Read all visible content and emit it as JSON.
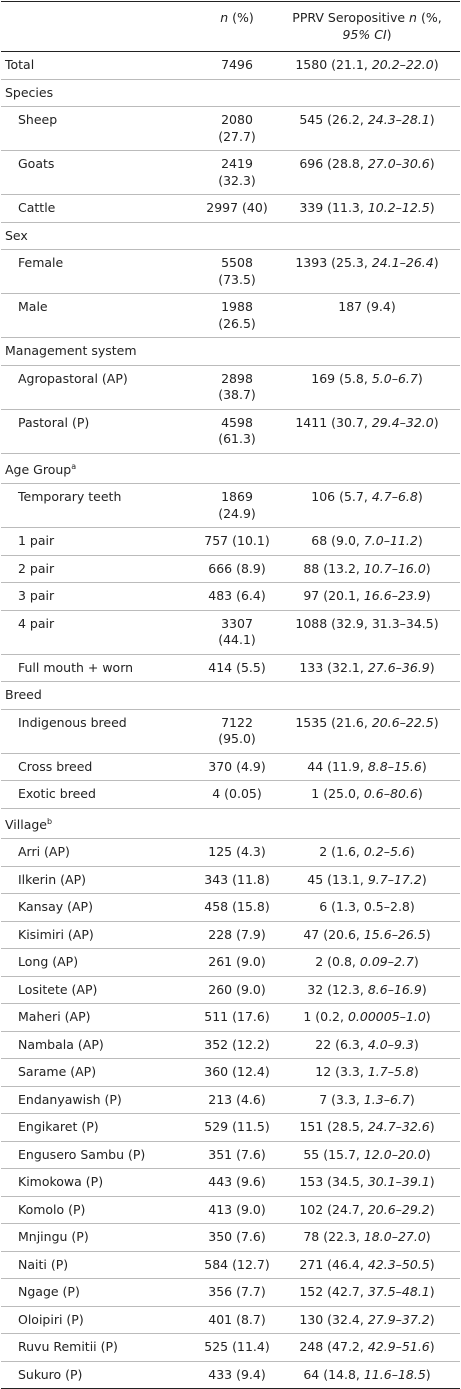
{
  "table": {
    "header": [
      [
        {
          "italic": "n"
        },
        " (%)"
      ],
      [
        "PPRV Seropositive ",
        {
          "italic": "n"
        },
        " (%, ",
        {
          "italic": "95% CI"
        },
        ")"
      ]
    ],
    "total": {
      "label": "Total",
      "n": "7496",
      "sero": [
        "1580 (21.1, ",
        {
          "italic": "20.2–22.0"
        },
        ")"
      ]
    },
    "sections": [
      {
        "label": "Species",
        "rows": [
          {
            "label": "Sheep",
            "n": "2080 (27.7)",
            "sero": [
              "545 (26.2, ",
              {
                "italic": "24.3–28.1"
              },
              ")"
            ]
          },
          {
            "label": "Goats",
            "n": "2419 (32.3)",
            "sero": [
              "696 (28.8, ",
              {
                "italic": "27.0–30.6"
              },
              ")"
            ]
          },
          {
            "label": "Cattle",
            "n": "2997 (40)",
            "sero": [
              "339 (11.3, ",
              {
                "italic": "10.2–12.5"
              },
              ")"
            ]
          }
        ]
      },
      {
        "label": "Sex",
        "rows": [
          {
            "label": "Female",
            "n": "5508 (73.5)",
            "sero": [
              "1393 (25.3, ",
              {
                "italic": "24.1–26.4"
              },
              ")"
            ]
          },
          {
            "label": "Male",
            "n": "1988 (26.5)",
            "sero": [
              "187 (9.4)"
            ]
          }
        ]
      },
      {
        "label": "Management system",
        "rows": [
          {
            "label": "Agropastoral (AP)",
            "n": "2898 (38.7)",
            "sero": [
              "169 (5.8, ",
              {
                "italic": "5.0–6.7"
              },
              ")"
            ]
          },
          {
            "label": "Pastoral (P)",
            "n": "4598 (61.3)",
            "sero": [
              "1411 (30.7, ",
              {
                "italic": "29.4–32.0"
              },
              ")"
            ]
          }
        ]
      },
      {
        "label": "Age Group",
        "note": "a",
        "rows": [
          {
            "label": "Temporary teeth",
            "n": "1869 (24.9)",
            "sero": [
              "106 (5.7, ",
              {
                "italic": "4.7–6.8"
              },
              ")"
            ]
          },
          {
            "label": "1 pair",
            "n": "757 (10.1)",
            "sero": [
              "68 (9.0, ",
              {
                "italic": "7.0–11.2"
              },
              ")"
            ]
          },
          {
            "label": "2 pair",
            "n": "666 (8.9)",
            "sero": [
              "88 (13.2, ",
              {
                "italic": "10.7–16.0"
              },
              ")"
            ]
          },
          {
            "label": "3 pair",
            "n": "483 (6.4)",
            "sero": [
              "97 (20.1, ",
              {
                "italic": "16.6–23.9"
              },
              ")"
            ]
          },
          {
            "label": "4 pair",
            "n": "3307 (44.1)",
            "sero": [
              "1088 (32.9, 31.3–34.5)"
            ]
          },
          {
            "label": "Full mouth + worn",
            "n": "414 (5.5)",
            "sero": [
              "133 (32.1, ",
              {
                "italic": "27.6–36.9"
              },
              ")"
            ]
          }
        ]
      },
      {
        "label": "Breed",
        "rows": [
          {
            "label": "Indigenous breed",
            "n": "7122 (95.0)",
            "sero": [
              "1535 (21.6, ",
              {
                "italic": "20.6–22.5"
              },
              ")"
            ]
          },
          {
            "label": "Cross breed",
            "n": "370 (4.9)",
            "sero": [
              "44 (11.9, ",
              {
                "italic": "8.8–15.6"
              },
              ")"
            ]
          },
          {
            "label": "Exotic breed",
            "n": "4 (0.05)",
            "sero": [
              "1 (25.0, ",
              {
                "italic": "0.6–80.6"
              },
              ")"
            ]
          }
        ]
      },
      {
        "label": "Village",
        "note": "b",
        "rows": [
          {
            "label": "Arri (AP)",
            "n": "125 (4.3)",
            "sero": [
              "2 (1.6, ",
              {
                "italic": "0.2–5.6"
              },
              ")"
            ]
          },
          {
            "label": "Ilkerin (AP)",
            "n": "343 (11.8)",
            "sero": [
              "45 (13.1, ",
              {
                "italic": "9.7–17.2"
              },
              ")"
            ]
          },
          {
            "label": "Kansay (AP)",
            "n": "458 (15.8)",
            "sero": [
              "6 (1.3, 0.5–2.8)"
            ]
          },
          {
            "label": "Kisimiri (AP)",
            "n": "228 (7.9)",
            "sero": [
              "47 (20.6, ",
              {
                "italic": "15.6–26.5"
              },
              ")"
            ]
          },
          {
            "label": "Long (AP)",
            "n": "261 (9.0)",
            "sero": [
              "2 (0.8, ",
              {
                "italic": "0.09–2.7"
              },
              ")"
            ]
          },
          {
            "label": "Lositete (AP)",
            "n": "260 (9.0)",
            "sero": [
              "32 (12.3, ",
              {
                "italic": "8.6–16.9"
              },
              ")"
            ]
          },
          {
            "label": "Maheri (AP)",
            "n": "511 (17.6)",
            "sero": [
              "1 (0.2, ",
              {
                "italic": "0.00005–1.0"
              },
              ")"
            ]
          },
          {
            "label": "Nambala (AP)",
            "n": "352 (12.2)",
            "sero": [
              "22 (6.3, ",
              {
                "italic": "4.0–9.3"
              },
              ")"
            ]
          },
          {
            "label": "Sarame (AP)",
            "n": "360 (12.4)",
            "sero": [
              "12 (3.3, ",
              {
                "italic": "1.7–5.8"
              },
              ")"
            ]
          },
          {
            "label": "Endanyawish (P)",
            "n": "213 (4.6)",
            "sero": [
              "7 (3.3, ",
              {
                "italic": "1.3–6.7"
              },
              ")"
            ]
          },
          {
            "label": "Engikaret (P)",
            "n": "529 (11.5)",
            "sero": [
              "151 (28.5, ",
              {
                "italic": "24.7–32.6"
              },
              ")"
            ]
          },
          {
            "label": "Engusero Sambu (P)",
            "n": "351 (7.6)",
            "sero": [
              "55 (15.7, ",
              {
                "italic": "12.0–20.0"
              },
              ")"
            ]
          },
          {
            "label": "Kimokowa (P)",
            "n": "443 (9.6)",
            "sero": [
              "153 (34.5, ",
              {
                "italic": "30.1–39.1"
              },
              ")"
            ]
          },
          {
            "label": "Komolo (P)",
            "n": "413 (9.0)",
            "sero": [
              "102 (24.7, ",
              {
                "italic": "20.6–29.2"
              },
              ")"
            ]
          },
          {
            "label": "Mnjingu (P)",
            "n": "350 (7.6)",
            "sero": [
              "78 (22.3, ",
              {
                "italic": "18.0–27.0"
              },
              ")"
            ]
          },
          {
            "label": "Naiti (P)",
            "n": "584 (12.7)",
            "sero": [
              "271 (46.4, ",
              {
                "italic": "42.3–50.5"
              },
              ")"
            ]
          },
          {
            "label": "Ngage (P)",
            "n": "356 (7.7)",
            "sero": [
              "152 (42.7, ",
              {
                "italic": "37.5–48.1"
              },
              ")"
            ]
          },
          {
            "label": "Oloipiri (P)",
            "n": "401 (8.7)",
            "sero": [
              "130 (32.4, ",
              {
                "italic": "27.9–37.2"
              },
              ")"
            ]
          },
          {
            "label": "Ruvu Remitii (P)",
            "n": "525 (11.4)",
            "sero": [
              "248 (47.2, ",
              {
                "italic": "42.9–51.6"
              },
              ")"
            ]
          },
          {
            "label": "Sukuro (P)",
            "n": "433 (9.4)",
            "sero": [
              "64 (14.8, ",
              {
                "italic": "11.6–18.5"
              },
              ")"
            ]
          }
        ]
      }
    ]
  }
}
